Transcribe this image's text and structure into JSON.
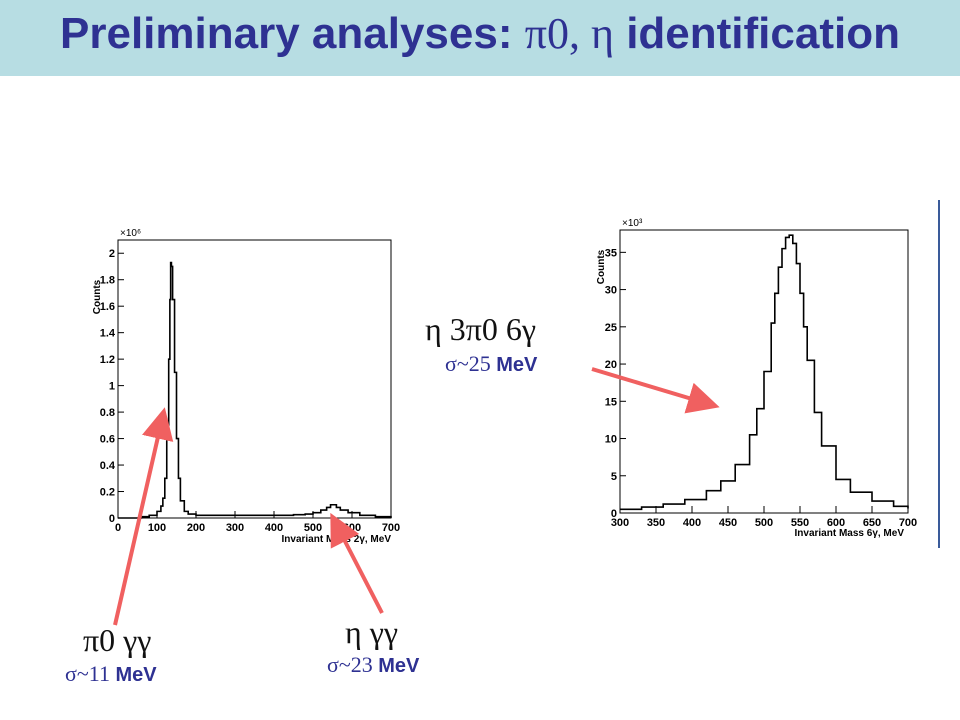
{
  "title": {
    "prefix": "Preliminary analyses: ",
    "greek": "π0, η",
    "suffix": " identification"
  },
  "annotations": {
    "eta_6g": {
      "formula": "η  3π0  6γ",
      "sigma": "σ~25",
      "unit": "MeV"
    },
    "pi0_gg": {
      "formula": "π0  γγ",
      "sigma": "σ~11",
      "unit": "MeV"
    },
    "eta_gg": {
      "formula": "η  γγ",
      "sigma": "σ~23",
      "unit": "MeV"
    }
  },
  "colors": {
    "title": "#2e3192",
    "title_bar": "#b7dde3",
    "arrow": "#f06060"
  },
  "chart_data": [
    {
      "type": "line",
      "xlabel": "Invariant Mass 2γ, MeV",
      "ylabel": "Counts",
      "y_exponent": "×10⁶",
      "xlim": [
        0,
        700
      ],
      "ylim": [
        0,
        2.1
      ],
      "x_ticks": [
        "0",
        "100",
        "200",
        "300",
        "400",
        "500",
        "600",
        "700"
      ],
      "y_ticks": [
        "0",
        "0.2",
        "0.4",
        "0.6",
        "0.8",
        "1",
        "1.2",
        "1.4",
        "1.6",
        "1.8",
        "2"
      ],
      "series": [
        {
          "x": [
            0,
            60,
            80,
            100,
            110,
            115,
            120,
            125,
            130,
            133,
            135,
            137,
            140,
            145,
            150,
            155,
            160,
            170,
            180,
            200,
            250,
            300,
            400,
            450,
            480,
            500,
            520,
            535,
            545,
            550,
            560,
            570,
            590,
            620,
            660,
            700
          ],
          "y": [
            0.0,
            0.01,
            0.02,
            0.05,
            0.09,
            0.15,
            0.3,
            0.6,
            1.2,
            1.65,
            1.93,
            1.9,
            1.65,
            1.1,
            0.6,
            0.3,
            0.13,
            0.05,
            0.03,
            0.02,
            0.02,
            0.02,
            0.02,
            0.025,
            0.03,
            0.04,
            0.06,
            0.08,
            0.1,
            0.1,
            0.08,
            0.06,
            0.04,
            0.02,
            0.01,
            0.0
          ]
        }
      ]
    },
    {
      "type": "line",
      "xlabel": "Invariant Mass 6γ, MeV",
      "ylabel": "Counts",
      "y_exponent": "×10³",
      "xlim": [
        300,
        700
      ],
      "ylim": [
        0,
        38
      ],
      "x_ticks": [
        "300",
        "350",
        "400",
        "450",
        "500",
        "550",
        "600",
        "650",
        "700"
      ],
      "y_ticks": [
        "0",
        "5",
        "10",
        "15",
        "20",
        "25",
        "30",
        "35"
      ],
      "series": [
        {
          "x": [
            300,
            330,
            360,
            390,
            420,
            440,
            460,
            480,
            490,
            500,
            510,
            515,
            520,
            525,
            530,
            535,
            540,
            545,
            550,
            555,
            560,
            570,
            580,
            600,
            620,
            650,
            680,
            700
          ],
          "y": [
            0.5,
            0.8,
            1.2,
            1.8,
            3.0,
            4.3,
            6.5,
            10.5,
            14.0,
            19.0,
            25.5,
            29.5,
            33.0,
            35.5,
            37.0,
            37.3,
            36.2,
            33.5,
            29.5,
            25.0,
            20.5,
            13.5,
            9.0,
            4.5,
            2.8,
            1.6,
            0.9,
            0.6
          ]
        }
      ]
    }
  ]
}
